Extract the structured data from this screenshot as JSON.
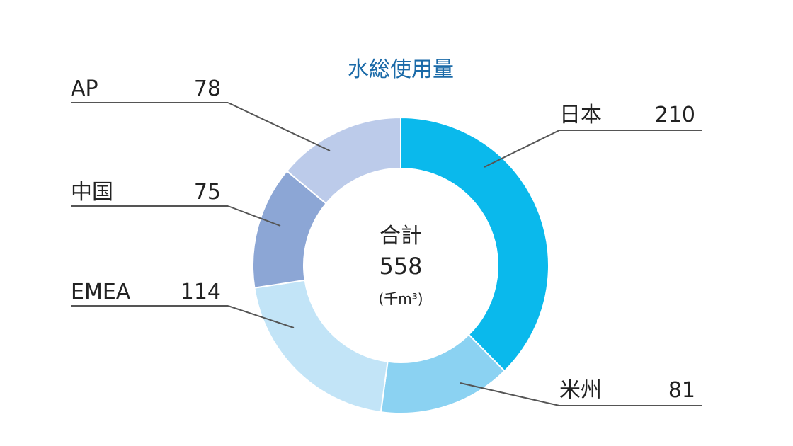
{
  "chart_data": {
    "type": "pie",
    "variant": "donut",
    "title": "水総使用量",
    "total_label": "合計",
    "total_value": "558",
    "unit": "(千m³)",
    "categories": [
      "日本",
      "米州",
      "EMEA",
      "中国",
      "AP"
    ],
    "values": [
      210,
      81,
      114,
      75,
      78
    ],
    "value_labels": [
      "210",
      "81",
      "114",
      "75",
      "78"
    ],
    "colors": [
      "#0ab9ec",
      "#8bd2f2",
      "#c2e4f7",
      "#8ca6d5",
      "#bccbea"
    ],
    "title_color": "#1a6aa8",
    "legend": "callout labels with leader lines"
  }
}
